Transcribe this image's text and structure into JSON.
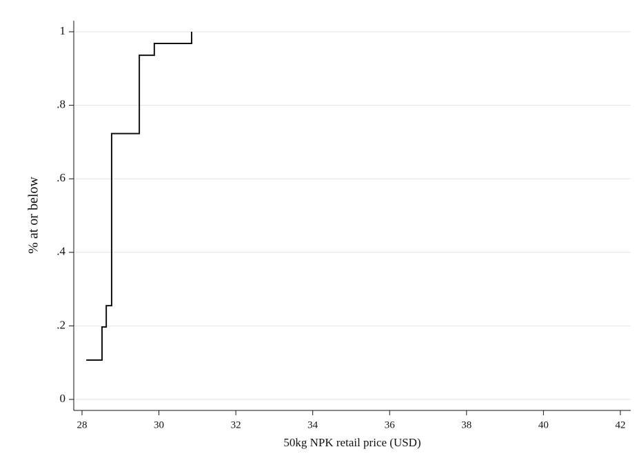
{
  "chart_data": {
    "type": "line",
    "step": "post",
    "color": "#111111",
    "xlabel": "50kg NPK retail price (USD)",
    "ylabel": "% at or below",
    "x": [
      28.11,
      28.52,
      28.63,
      28.77,
      29.49,
      29.88,
      30.85
    ],
    "values": [
      0.107,
      0.197,
      0.255,
      0.723,
      0.936,
      0.968,
      1
    ],
    "xlim": [
      27.785,
      42.27
    ],
    "ylim": [
      -0.03,
      1.03
    ],
    "xticks": [
      28,
      30,
      32,
      34,
      36,
      38,
      40,
      42
    ],
    "yticks": [
      0,
      {
        "value": 0.2,
        "label": ".2"
      },
      {
        "value": 0.4,
        "label": ".4"
      },
      {
        "value": 0.6,
        "label": ".6"
      },
      {
        "value": 0.8,
        "label": ".8"
      },
      1
    ],
    "grid": true
  }
}
